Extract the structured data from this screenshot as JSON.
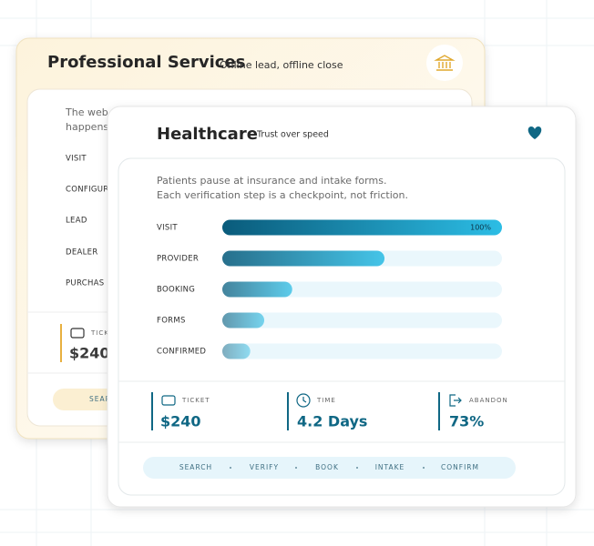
{
  "back_card": {
    "title": "Professional Services",
    "subtitle": "Online lead, offline close",
    "description": [
      "The web",
      "happens"
    ],
    "steps": [
      "VISIT",
      "CONFIGUR",
      "LEAD",
      "DEALER",
      "PURCHAS"
    ],
    "stat": {
      "label": "TICK",
      "value": "$240"
    },
    "nav": [
      "SEAR"
    ]
  },
  "front_card": {
    "title": "Healthcare",
    "subtitle": "Trust over speed",
    "description": [
      "Patients pause at insurance and intake forms.",
      "Each verification step is a checkpoint, not friction."
    ],
    "stats": [
      {
        "label": "TICKET",
        "value": "$240"
      },
      {
        "label": "TIME",
        "value": "4.2 Days"
      },
      {
        "label": "ABANDON",
        "value": "73%"
      }
    ],
    "nav": [
      "SEARCH",
      "VERIFY",
      "BOOK",
      "INTAKE",
      "CONFIRM"
    ]
  },
  "chart_data": {
    "type": "bar",
    "orientation": "horizontal",
    "categories": [
      "VISIT",
      "PROVIDER",
      "BOOKING",
      "FORMS",
      "CONFIRMED"
    ],
    "values": [
      100,
      58,
      25,
      15,
      10
    ],
    "value_labels": [
      "100%",
      null,
      null,
      null,
      null
    ],
    "color": "#0b5f80"
  }
}
